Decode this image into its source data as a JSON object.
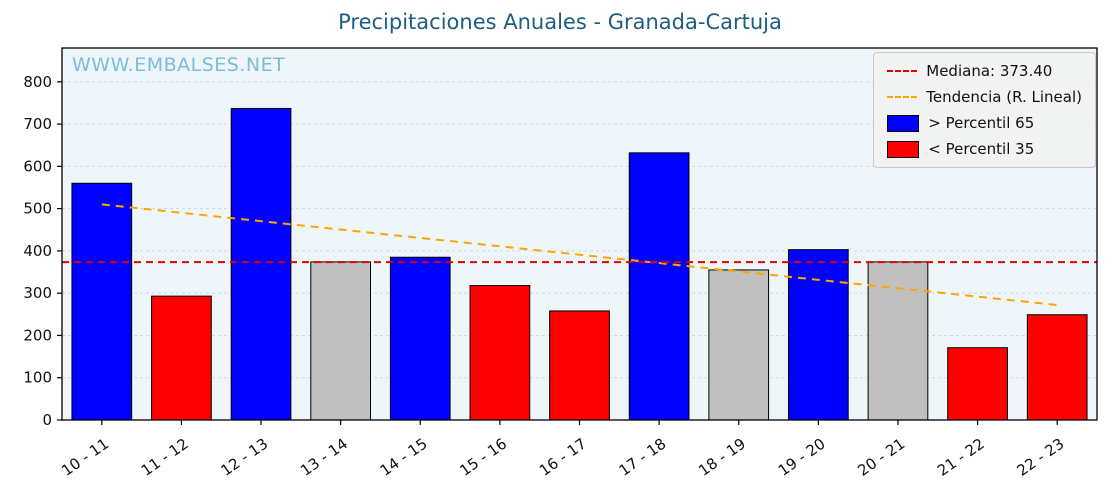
{
  "title": "Precipitaciones Anuales - Granada-Cartuja",
  "watermark": "WWW.EMBALSES.NET",
  "legend": {
    "median_label": "Mediana: 373.40",
    "trend_label": "Tendencia (R. Lineal)",
    "p65_label": "> Percentil 65",
    "p35_label": "< Percentil 35"
  },
  "colors": {
    "title": "#1d5d80",
    "watermark": "#7cbcdc",
    "bar_above_p65": "#0000ff",
    "bar_below_p35": "#ff0000",
    "bar_mid": "#c0c0c0",
    "bar_edge": "#000000",
    "median_line": "#e10000",
    "trend_line": "#ffa500",
    "plot_background": "#eff6fa",
    "grid_line": "#ccd9e0"
  },
  "chart_data": {
    "type": "bar",
    "title": "Precipitaciones Anuales - Granada-Cartuja",
    "xlabel": "",
    "ylabel": "",
    "categories": [
      "10 - 11",
      "11 - 12",
      "12 - 13",
      "13 - 14",
      "14 - 15",
      "15 - 16",
      "16 - 17",
      "17 - 18",
      "18 - 19",
      "19 - 20",
      "20 - 21",
      "21 - 22",
      "22 - 23"
    ],
    "values": [
      560,
      293,
      737,
      374,
      385,
      318,
      258,
      632,
      355,
      403,
      374,
      171,
      249
    ],
    "bar_classes": [
      "above",
      "below",
      "above",
      "mid",
      "above",
      "below",
      "below",
      "above",
      "mid",
      "above",
      "mid",
      "below",
      "below"
    ],
    "median": 373.4,
    "trend": {
      "start_value": 510,
      "end_value": 272
    },
    "ylim": [
      0,
      880
    ],
    "yticks": [
      0,
      100,
      200,
      300,
      400,
      500,
      600,
      700,
      800
    ],
    "grid": true,
    "legend_position": "upper right"
  }
}
